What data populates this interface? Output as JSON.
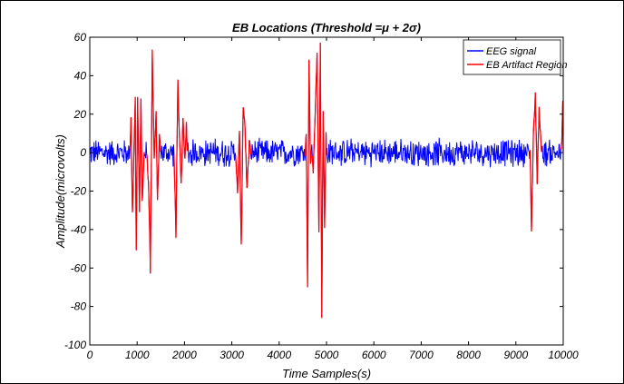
{
  "chart_data": {
    "type": "line",
    "title": "EB Locations (Threshold =μ + 2σ)",
    "xlabel": "Time Samples(s)",
    "ylabel": "Amplitude(microvolts)",
    "xlim": [
      0,
      10000
    ],
    "ylim": [
      -100,
      60
    ],
    "xticks": [
      0,
      1000,
      2000,
      3000,
      4000,
      5000,
      6000,
      7000,
      8000,
      9000,
      10000
    ],
    "yticks": [
      -100,
      -80,
      -60,
      -40,
      -20,
      0,
      20,
      40,
      60
    ],
    "xtick_labels": [
      "0",
      "1000",
      "2000",
      "3000",
      "4000",
      "5000",
      "6000",
      "7000",
      "8000",
      "9000",
      "10000"
    ],
    "ytick_labels": [
      "-100",
      "-80",
      "-60",
      "-40",
      "-20",
      "0",
      "20",
      "40",
      "60"
    ],
    "grid": false,
    "legend_position": "top-right",
    "background_noise_amplitude": 8,
    "series": [
      {
        "name": "EEG signal",
        "color": "#0000ff"
      },
      {
        "name": "EB Artifact Region",
        "color": "#ff0000"
      }
    ],
    "blink_events": [
      {
        "x_start": 850,
        "x_end": 1150,
        "peaks": [
          [
            870,
            20
          ],
          [
            900,
            -33
          ],
          [
            960,
            28
          ],
          [
            980,
            -52
          ],
          [
            1010,
            28
          ],
          [
            1050,
            -30
          ],
          [
            1080,
            30
          ],
          [
            1110,
            -25
          ]
        ]
      },
      {
        "x_start": 1200,
        "x_end": 1500,
        "peaks": [
          [
            1240,
            -15
          ],
          [
            1280,
            -61
          ],
          [
            1320,
            52
          ],
          [
            1360,
            -5
          ],
          [
            1400,
            20
          ],
          [
            1430,
            -25
          ],
          [
            1470,
            8
          ]
        ]
      },
      {
        "x_start": 1780,
        "x_end": 2060,
        "peaks": [
          [
            1820,
            -44
          ],
          [
            1860,
            38
          ],
          [
            1890,
            10
          ],
          [
            1930,
            -15
          ],
          [
            1970,
            18
          ],
          [
            2010,
            -5
          ],
          [
            2040,
            14
          ]
        ]
      },
      {
        "x_start": 3080,
        "x_end": 3400,
        "peaks": [
          [
            3120,
            -20
          ],
          [
            3160,
            10
          ],
          [
            3200,
            -49
          ],
          [
            3240,
            25
          ],
          [
            3280,
            12
          ],
          [
            3320,
            -20
          ],
          [
            3370,
            5
          ]
        ]
      },
      {
        "x_start": 4550,
        "x_end": 4680,
        "peaks": [
          [
            4570,
            10
          ],
          [
            4600,
            -70
          ],
          [
            4630,
            50
          ],
          [
            4660,
            -5
          ]
        ]
      },
      {
        "x_start": 4700,
        "x_end": 5000,
        "peaks": [
          [
            4720,
            -10
          ],
          [
            4760,
            20
          ],
          [
            4800,
            50
          ],
          [
            4840,
            -40
          ],
          [
            4870,
            59
          ],
          [
            4900,
            -85
          ],
          [
            4930,
            22
          ],
          [
            4960,
            -38
          ],
          [
            4990,
            10
          ]
        ]
      },
      {
        "x_start": 9300,
        "x_end": 9550,
        "peaks": [
          [
            9330,
            -40
          ],
          [
            9370,
            10
          ],
          [
            9410,
            30
          ],
          [
            9450,
            -15
          ],
          [
            9490,
            22
          ],
          [
            9530,
            5
          ]
        ]
      },
      {
        "x_start": 9950,
        "x_end": 10000,
        "peaks": [
          [
            9970,
            5
          ],
          [
            9995,
            31
          ]
        ]
      }
    ]
  }
}
